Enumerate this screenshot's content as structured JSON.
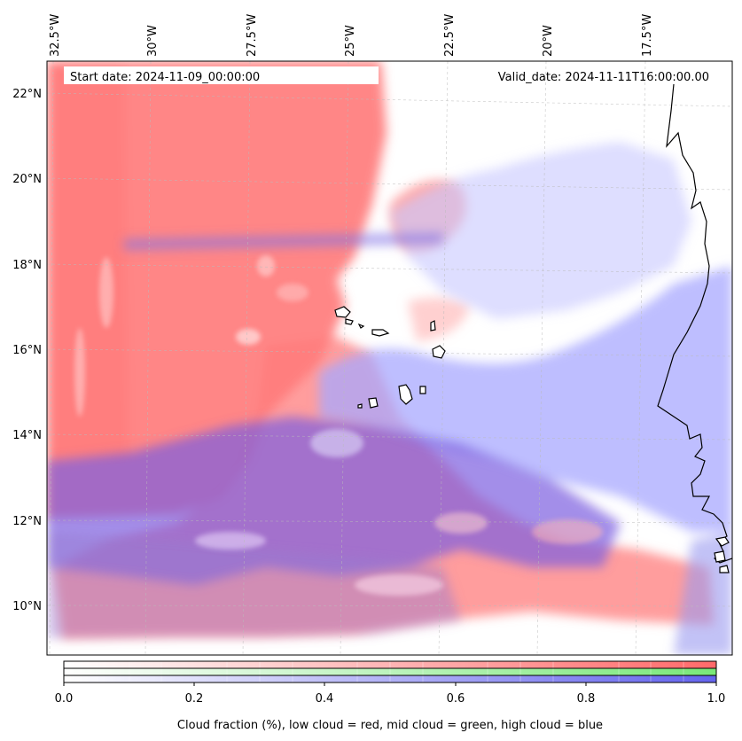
{
  "map": {
    "start_date": "Start date: 2024-11-09_00:00:00",
    "valid_date": "Valid_date: 2024-11-11T16:00:00.00",
    "lon_ticks": [
      "32.5°W",
      "30°W",
      "27.5°W",
      "25°W",
      "22.5°W",
      "20°W",
      "17.5°W"
    ],
    "lat_ticks": [
      "22°N",
      "20°N",
      "18°N",
      "16°N",
      "14°N",
      "12°N",
      "10°N"
    ],
    "layers": [
      {
        "name": "low cloud",
        "color": "#ff6a6a"
      },
      {
        "name": "mid cloud",
        "color": "#79e879"
      },
      {
        "name": "high cloud",
        "color": "#6464ee"
      }
    ]
  },
  "colorbar": {
    "ticks": [
      "0.0",
      "0.2",
      "0.4",
      "0.6",
      "0.8",
      "1.0"
    ],
    "label": "Cloud fraction (%), low cloud = red, mid cloud = green, high cloud = blue",
    "range": [
      0.0,
      1.0
    ]
  }
}
